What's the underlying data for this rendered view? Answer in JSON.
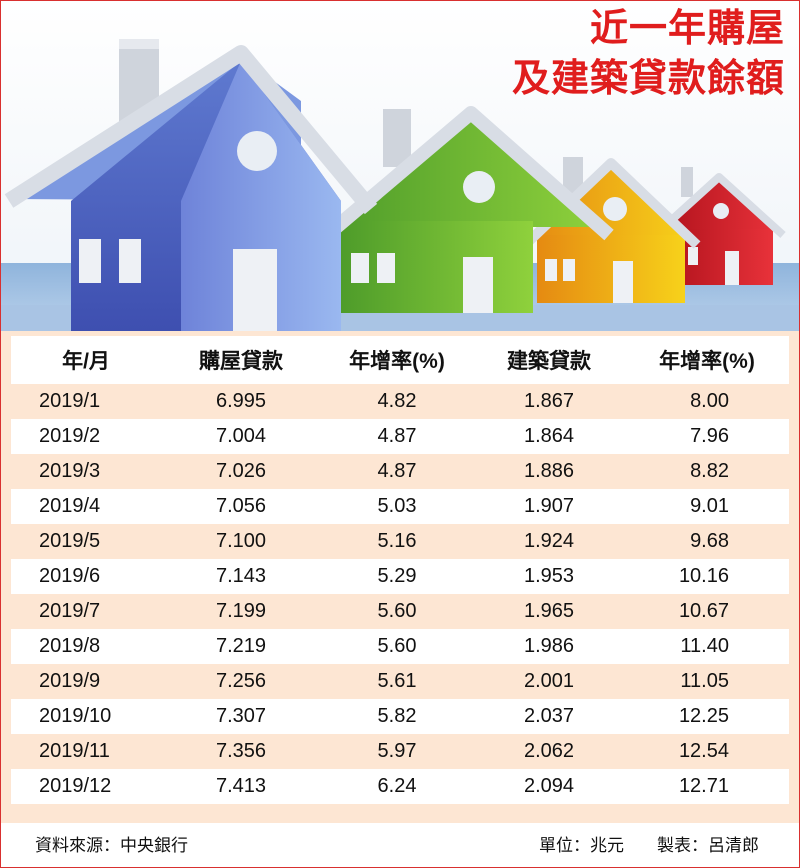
{
  "title": {
    "line1": "近一年購屋",
    "line2": "及建築貸款餘額"
  },
  "colors": {
    "accent": "#e01d1d",
    "stripe": "#fde6d3",
    "border": "#d9302f"
  },
  "chart_data": {
    "type": "table",
    "title": "近一年購屋及建築貸款餘額",
    "columns": [
      "年/月",
      "購屋貸款",
      "年增率(%)",
      "建築貸款",
      "年增率(%)"
    ],
    "rows": [
      [
        "2019/1",
        "6.995",
        "4.82",
        "1.867",
        "8.00"
      ],
      [
        "2019/2",
        "7.004",
        "4.87",
        "1.864",
        "7.96"
      ],
      [
        "2019/3",
        "7.026",
        "4.87",
        "1.886",
        "8.82"
      ],
      [
        "2019/4",
        "7.056",
        "5.03",
        "1.907",
        "9.01"
      ],
      [
        "2019/5",
        "7.100",
        "5.16",
        "1.924",
        "9.68"
      ],
      [
        "2019/6",
        "7.143",
        "5.29",
        "1.953",
        "10.16"
      ],
      [
        "2019/7",
        "7.199",
        "5.60",
        "1.965",
        "10.67"
      ],
      [
        "2019/8",
        "7.219",
        "5.60",
        "1.986",
        "11.40"
      ],
      [
        "2019/9",
        "7.256",
        "5.61",
        "2.001",
        "11.05"
      ],
      [
        "2019/10",
        "7.307",
        "5.82",
        "2.037",
        "12.25"
      ],
      [
        "2019/11",
        "7.356",
        "5.97",
        "2.062",
        "12.54"
      ],
      [
        "2019/12",
        "7.413",
        "6.24",
        "2.094",
        "12.71"
      ]
    ]
  },
  "footer": {
    "source": "資料來源：中央銀行",
    "unit": "單位：兆元",
    "maker": "製表：呂清郎"
  },
  "illustration": {
    "houses": [
      "blue-house",
      "green-house",
      "yellow-house",
      "red-house"
    ]
  }
}
